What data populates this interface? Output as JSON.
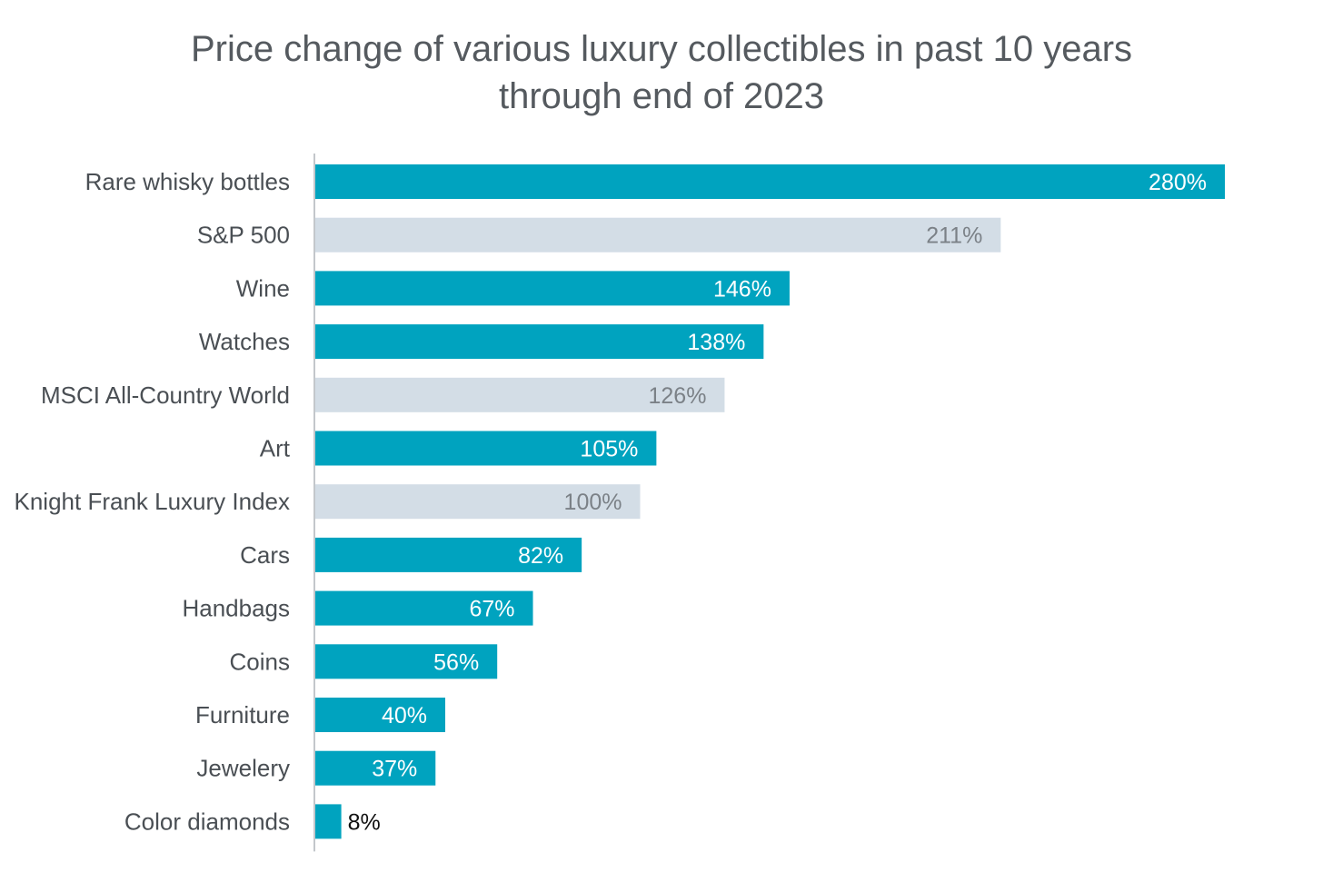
{
  "chart_data": {
    "type": "bar",
    "orientation": "horizontal",
    "title_line1": "Price change of various luxury collectibles in past 10 years",
    "title_line2": "through end of 2023",
    "xlabel": "",
    "ylabel": "",
    "xlim": [
      0,
      280
    ],
    "grid": false,
    "legend": "none",
    "value_suffix": "%",
    "categories": [
      "Rare whisky bottles",
      "S&P 500",
      "Wine",
      "Watches",
      "MSCI All-Country World",
      "Art",
      "Knight Frank Luxury Index",
      "Cars",
      "Handbags",
      "Coins",
      "Furniture",
      "Jewelery",
      "Color diamonds"
    ],
    "values": [
      280,
      211,
      146,
      138,
      126,
      105,
      100,
      82,
      67,
      56,
      40,
      37,
      8
    ],
    "value_labels": [
      "280%",
      "211%",
      "146%",
      "138%",
      "126%",
      "105%",
      "100%",
      "82%",
      "67%",
      "56%",
      "40%",
      "37%",
      "8%"
    ],
    "bar_kinds": [
      "collectible",
      "benchmark",
      "collectible",
      "collectible",
      "benchmark",
      "collectible",
      "benchmark",
      "collectible",
      "collectible",
      "collectible",
      "collectible",
      "collectible",
      "collectible"
    ],
    "colors": {
      "collectible": "#00a3bf",
      "benchmark": "#d3dde6",
      "label_on_collectible": "#ffffff",
      "label_on_benchmark": "#7b8187",
      "label_outside": "#111111",
      "axis": "#c3c7cb"
    }
  }
}
